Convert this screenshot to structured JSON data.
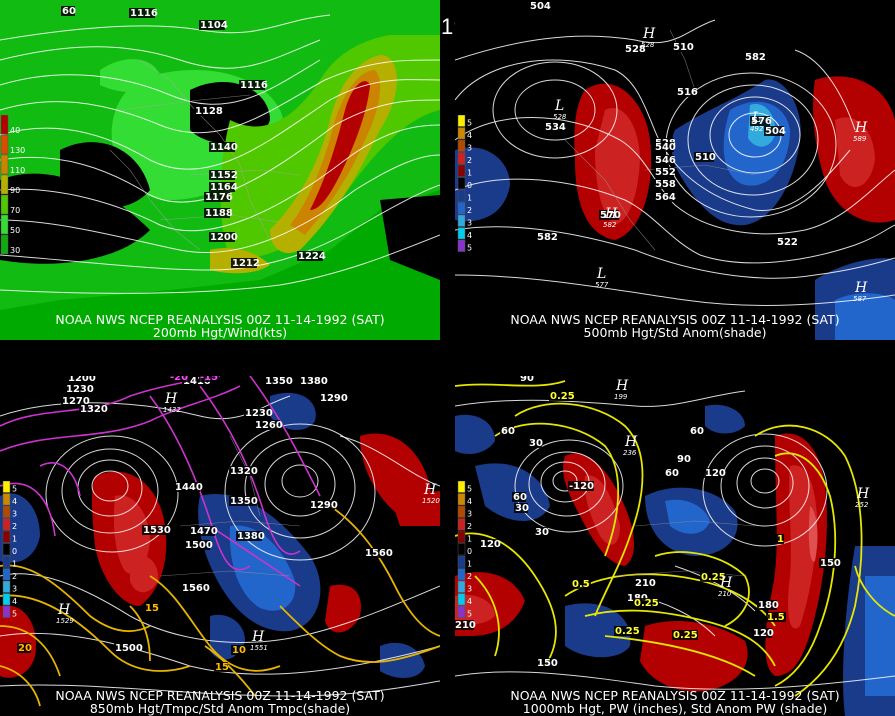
{
  "title": "00Z 11-14-1992 (SAT)",
  "panels": [
    {
      "caption_line1": "NOAA NWS NCEP REANALYSIS 00Z 11-14-1992 (SAT)",
      "caption_line2": "200mb Hgt/Wind(kts)",
      "legend": [
        "40",
        "130",
        "110",
        "90",
        "70",
        "50",
        "30"
      ],
      "legend_colors": [
        "#b30000",
        "#d94c00",
        "#cc8400",
        "#b5b000",
        "#4fc800",
        "#33dd33",
        "#11aa11"
      ],
      "contour_labels": [
        "1116",
        "1104",
        "1116",
        "1128",
        "1140",
        "1152",
        "1164",
        "1176",
        "1188",
        "1200",
        "1212",
        "1224",
        "60"
      ]
    },
    {
      "caption_line1": "NOAA NWS NCEP REANALYSIS 00Z 11-14-1992 (SAT)",
      "caption_line2": "500mb Hgt/Std Anom(shade)",
      "legend": [
        "5",
        "4",
        "3",
        "2",
        "1",
        "0",
        "1",
        "2",
        "3",
        "4",
        "5"
      ],
      "legend_colors": [
        "#ffee00",
        "#cc8800",
        "#b34a00",
        "#cc2222",
        "#880000",
        "#000000",
        "#1a3a8a",
        "#2266cc",
        "#33aadd",
        "#00ccee",
        "#8833cc"
      ],
      "contour_labels": [
        "504",
        "528",
        "510",
        "516",
        "534",
        "528",
        "540",
        "546",
        "552",
        "558",
        "564",
        "570",
        "576",
        "504",
        "510",
        "522",
        "582",
        "582"
      ],
      "pressure_marks": [
        {
          "t": "H",
          "v": "528"
        },
        {
          "t": "L",
          "v": "528"
        },
        {
          "t": "H",
          "v": "582"
        },
        {
          "t": "L",
          "v": "577"
        },
        {
          "t": "H",
          "v": "589"
        },
        {
          "t": "H",
          "v": "587"
        },
        {
          "t": "L",
          "v": "492"
        }
      ]
    },
    {
      "caption_line1": "NOAA NWS NCEP REANALYSIS 00Z 11-14-1992 (SAT)",
      "caption_line2": "850mb Hgt/Tmpc/Std Anom Tmpc(shade)",
      "legend": [
        "5",
        "4",
        "3",
        "2",
        "1",
        "0",
        "1",
        "2",
        "3",
        "4",
        "5"
      ],
      "legend_colors": [
        "#ffee00",
        "#cc8800",
        "#b34a00",
        "#cc2222",
        "#880000",
        "#000000",
        "#1a3a8a",
        "#2266cc",
        "#33aadd",
        "#00ccee",
        "#8833cc"
      ],
      "contour_labels": [
        "1200",
        "1230",
        "1270",
        "1320",
        "1410",
        "1380",
        "1350",
        "1290",
        "1260",
        "1230",
        "1440",
        "1320",
        "1350",
        "1380",
        "1470",
        "1500",
        "1530",
        "1560",
        "1500",
        "1560",
        "1290",
        "-20",
        "-15",
        "15",
        "20",
        "10",
        "15"
      ],
      "pressure_marks": [
        {
          "t": "H",
          "v": "1432"
        },
        {
          "t": "H",
          "v": "1520"
        },
        {
          "t": "H",
          "v": "1529"
        },
        {
          "t": "H",
          "v": "1551"
        }
      ]
    },
    {
      "caption_line1": "NOAA NWS NCEP REANALYSIS 00Z 11-14-1992 (SAT)",
      "caption_line2": "1000mb Hgt, PW (inches), Std Anom PW (shade)",
      "legend": [
        "5",
        "4",
        "3",
        "2",
        "1",
        "0",
        "1",
        "2",
        "3",
        "4",
        "5"
      ],
      "legend_colors": [
        "#ffee00",
        "#cc8800",
        "#b34a00",
        "#cc2222",
        "#880000",
        "#000000",
        "#1a3a8a",
        "#2266cc",
        "#33aadd",
        "#00ccee",
        "#8833cc"
      ],
      "contour_labels": [
        "90",
        "0.25",
        "60",
        "30",
        "90",
        "60",
        "-120",
        "60",
        "30",
        "120",
        "30",
        "210",
        "180",
        "0.25",
        "0.5",
        "0.25",
        "1",
        "1.5",
        "210",
        "0.25",
        "150",
        "180",
        "0.25",
        "120",
        "150",
        "60",
        "120"
      ],
      "pressure_marks": [
        {
          "t": "H",
          "v": "199"
        },
        {
          "t": "H",
          "v": "236"
        },
        {
          "t": "H",
          "v": "252"
        },
        {
          "t": "H",
          "v": "210"
        }
      ]
    }
  ]
}
